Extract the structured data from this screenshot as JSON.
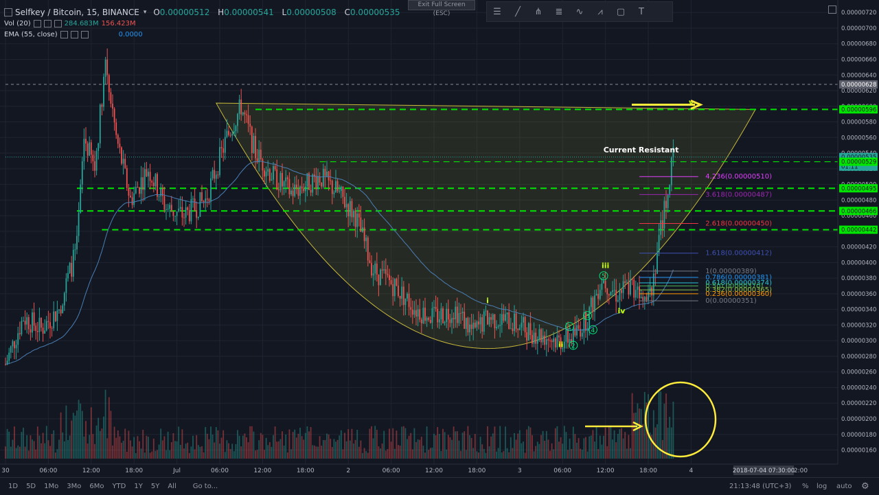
{
  "header": {
    "symbol": "Selfkey / Bitcoin, 15, BINANCE",
    "o_label": "O",
    "o_value": "0.00000512",
    "h_label": "H",
    "h_value": "0.00000541",
    "l_label": "L",
    "l_value": "0.00000508",
    "c_label": "C",
    "c_value": "0.00000535",
    "fullscreen_tip": "Exit Full Screen (ESC)"
  },
  "indicators": [
    {
      "label": "Vol (20)",
      "v1": "284.683M",
      "v2": "156.423M"
    },
    {
      "label": "EMA (55, close)",
      "v1": "0.0000"
    }
  ],
  "toolbar_icons": [
    "bars-icon",
    "line-tool-icon",
    "pitchfork-icon",
    "fib-icon",
    "pattern-icon",
    "zigzag-icon",
    "rect-icon",
    "text-icon"
  ],
  "bottom": {
    "ranges": [
      "1D",
      "5D",
      "1Mo",
      "3Mo",
      "6Mo",
      "YTD",
      "1Y",
      "5Y",
      "All"
    ],
    "goto": "Go to...",
    "clock": "21:13:48 (UTC+3)",
    "pct": "%",
    "log": "log",
    "auto": "auto"
  },
  "chart_data": {
    "type": "candlestick",
    "y_min": 1.42e-06,
    "y_max": 7.36e-06,
    "y_ticks": [
      "0.00000720",
      "0.00000700",
      "0.00000680",
      "0.00000660",
      "0.00000640",
      "0.00000620",
      "0.00000600",
      "0.00000580",
      "0.00000560",
      "0.00000540",
      "0.00000520",
      "0.00000500",
      "0.00000480",
      "0.00000460",
      "0.00000440",
      "0.00000420",
      "0.00000400",
      "0.00000380",
      "0.00000360",
      "0.00000340",
      "0.00000320",
      "0.00000300",
      "0.00000280",
      "0.00000260",
      "0.00000240",
      "0.00000220",
      "0.00000200",
      "0.00000180",
      "0.00000160"
    ],
    "x_ticks": [
      {
        "label": "30",
        "t": 0
      },
      {
        "label": "06:00",
        "t": 24
      },
      {
        "label": "12:00",
        "t": 48
      },
      {
        "label": "18:00",
        "t": 72
      },
      {
        "label": "Jul",
        "t": 96
      },
      {
        "label": "06:00",
        "t": 120
      },
      {
        "label": "12:00",
        "t": 144
      },
      {
        "label": "18:00",
        "t": 168
      },
      {
        "label": "2",
        "t": 192
      },
      {
        "label": "06:00",
        "t": 216
      },
      {
        "label": "12:00",
        "t": 240
      },
      {
        "label": "18:00",
        "t": 264
      },
      {
        "label": "3",
        "t": 288
      },
      {
        "label": "06:00",
        "t": 312
      },
      {
        "label": "12:00",
        "t": 336
      },
      {
        "label": "18:00",
        "t": 360
      },
      {
        "label": "4",
        "t": 384
      }
    ],
    "crosshair_time": "2018-07-04 07:30:00",
    "crosshair_time_suffix": "2:00",
    "price_badges": [
      {
        "value": "0.00000628",
        "color": "#5d606b"
      },
      {
        "value": "0.00000596",
        "color": "#00e600"
      },
      {
        "value": "0.00000535",
        "color": "#26a69a"
      },
      {
        "value": "01:11",
        "color": "#26a69a",
        "offset": 1
      },
      {
        "value": "0.00000529",
        "color": "#00e600"
      },
      {
        "value": "0.00000495",
        "color": "#00e600"
      },
      {
        "value": "0.00000466",
        "color": "#00e600"
      },
      {
        "value": "0.00000442",
        "color": "#00e600"
      }
    ],
    "horizontal_levels": [
      {
        "price": 5.96e-06,
        "t0": 140,
        "t1": 460,
        "color": "#00e600",
        "dash": "9,6",
        "width": 2
      },
      {
        "price": 5.29e-06,
        "t0": 176,
        "t1": 460,
        "color": "#00e600",
        "dash": "9,6",
        "width": 1.2
      },
      {
        "price": 4.95e-06,
        "t0": 40,
        "t1": 460,
        "color": "#00e600",
        "dash": "9,6",
        "width": 2
      },
      {
        "price": 4.66e-06,
        "t0": 40,
        "t1": 460,
        "color": "#00e600",
        "dash": "9,6",
        "width": 2
      },
      {
        "price": 4.42e-06,
        "t0": 54,
        "t1": 460,
        "color": "#00e600",
        "dash": "9,6",
        "width": 2
      },
      {
        "price": 6.28e-06,
        "t0": 0,
        "t1": 460,
        "color": "#8a8d96",
        "dash": "4,4",
        "width": 1
      },
      {
        "price": 5.35e-06,
        "t0": 0,
        "t1": 460,
        "color": "#26a69a",
        "dash": "1,2",
        "width": 1
      }
    ],
    "fib_levels": [
      {
        "label": "4.236(0.00000510)",
        "price": 5.1e-06,
        "color": "#e040fb"
      },
      {
        "label": "3.618(0.00000487)",
        "price": 4.87e-06,
        "color": "#9c27b0"
      },
      {
        "label": "2.618(0.00000450)",
        "price": 4.5e-06,
        "color": "#f23645"
      },
      {
        "label": "1.618(0.00000412)",
        "price": 4.12e-06,
        "color": "#3f51b5"
      },
      {
        "label": "1(0.00000389)",
        "price": 3.89e-06,
        "color": "#787b86"
      },
      {
        "label": "0.786(0.00000381)",
        "price": 3.81e-06,
        "color": "#2196f3"
      },
      {
        "label": "0.618(0.00000374)",
        "price": 3.74e-06,
        "color": "#26c6da"
      },
      {
        "label": "0.5(0.00000370)",
        "price": 3.7e-06,
        "color": "#4caf50"
      },
      {
        "label": "0.382(0.00000365)",
        "price": 3.65e-06,
        "color": "#8bc34a"
      },
      {
        "label": "0.236(0.00000360)",
        "price": 3.6e-06,
        "color": "#ff9800"
      },
      {
        "label": "0(0.00000351)",
        "price": 3.51e-06,
        "color": "#787b86"
      }
    ],
    "annotations": [
      {
        "text": "Current Resistant",
        "t": 356,
        "price": 5.41e-06
      },
      {
        "text": "v",
        "t": 384,
        "price": 6.02e-06
      },
      {
        "text": "iii",
        "t": 336,
        "price": 3.93e-06
      },
      {
        "text": "i",
        "t": 270,
        "price": 3.48e-06
      },
      {
        "text": "ii",
        "t": 311,
        "price": 2.92e-06
      },
      {
        "text": "iv",
        "t": 345,
        "price": 3.35e-06
      }
    ],
    "wave_circles": [
      {
        "n": "1",
        "t": 316,
        "price": 3.18e-06
      },
      {
        "n": "2",
        "t": 318,
        "price": 2.94e-06
      },
      {
        "n": "3",
        "t": 326,
        "price": 3.32e-06
      },
      {
        "n": "4",
        "t": 329,
        "price": 3.14e-06
      },
      {
        "n": "5",
        "t": 335,
        "price": 3.83e-06
      }
    ]
  }
}
